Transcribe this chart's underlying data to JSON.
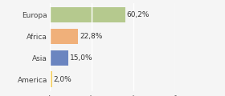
{
  "categories": [
    "Europa",
    "Africa",
    "Asia",
    "America"
  ],
  "values": [
    60.2,
    22.8,
    15.0,
    2.0
  ],
  "labels": [
    "60,2%",
    "22,8%",
    "15,0%",
    "2,0%"
  ],
  "bar_colors": [
    "#b5c98e",
    "#f0b07a",
    "#6b85c0",
    "#f5d16a"
  ],
  "background_color": "#f5f5f5",
  "xlim": [
    0,
    100
  ],
  "label_fontsize": 6.5,
  "tick_fontsize": 6.5,
  "grid_color": "#ffffff",
  "grid_xticks": [
    0,
    33.3,
    66.6,
    100
  ]
}
